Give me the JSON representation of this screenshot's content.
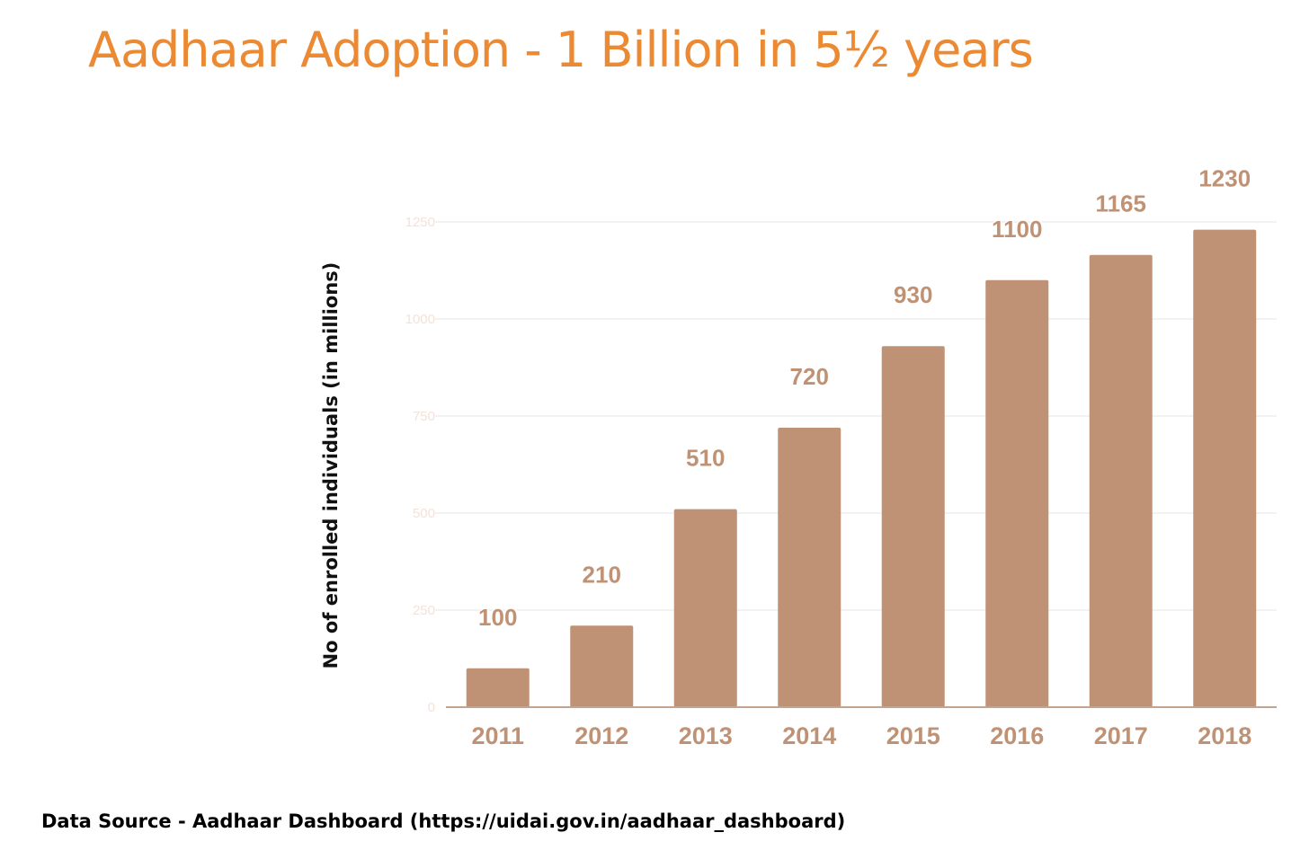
{
  "chart_data": {
    "type": "bar",
    "title": "Aadhaar Adoption - 1 Billion in 5½ years",
    "xlabel": "",
    "ylabel": "No of enrolled individuals (in millions)",
    "categories": [
      "2011",
      "2012",
      "2013",
      "2014",
      "2015",
      "2016",
      "2017",
      "2018"
    ],
    "values": [
      100,
      210,
      510,
      720,
      930,
      1100,
      1165,
      1230
    ],
    "data_labels": [
      "100",
      "210",
      "510",
      "720",
      "930",
      "1100",
      "1165",
      "1230"
    ],
    "ylim": [
      0,
      1250
    ],
    "yticks": [
      0,
      250,
      500,
      750,
      1000,
      1250
    ],
    "ytick_labels": [
      "0",
      "250",
      "500",
      "750",
      "1000",
      "1250"
    ],
    "grid": true,
    "legend": "none",
    "colors": {
      "bar": "#c09275",
      "title": "#ec8a34",
      "axis_text": "#c09275",
      "tick_text": "#f3e2d8",
      "gridline": "#eeeeee",
      "baseline": "#c5a48f"
    }
  },
  "footer": {
    "source": "Data Source - Aadhaar Dashboard (https://uidai.gov.in/aadhaar_dashboard)"
  }
}
